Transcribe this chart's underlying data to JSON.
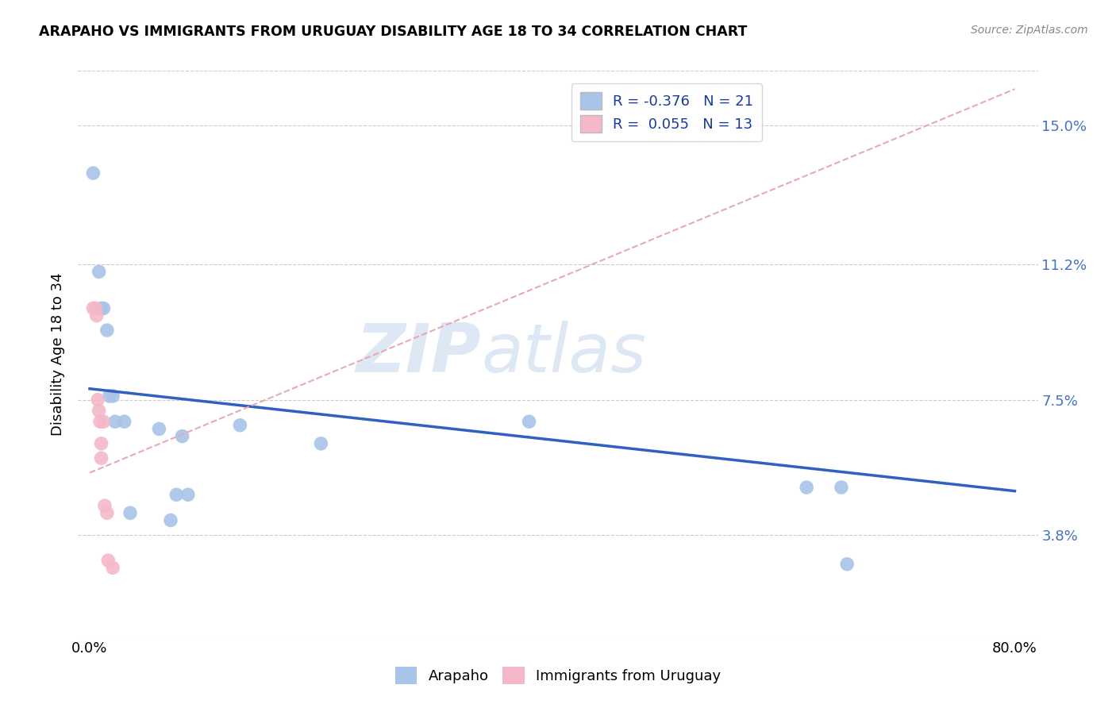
{
  "title": "ARAPAHO VS IMMIGRANTS FROM URUGUAY DISABILITY AGE 18 TO 34 CORRELATION CHART",
  "source": "Source: ZipAtlas.com",
  "ylabel": "Disability Age 18 to 34",
  "xlim": [
    -0.01,
    0.82
  ],
  "ylim": [
    0.01,
    0.165
  ],
  "plot_ylim": [
    0.01,
    0.165
  ],
  "yticks": [
    0.038,
    0.075,
    0.112,
    0.15
  ],
  "ytick_labels": [
    "3.8%",
    "7.5%",
    "11.2%",
    "15.0%"
  ],
  "xticks": [
    0.0,
    0.1,
    0.2,
    0.3,
    0.4,
    0.5,
    0.6,
    0.7,
    0.8
  ],
  "xtick_labels": [
    "0.0%",
    "",
    "",
    "",
    "",
    "",
    "",
    "",
    "80.0%"
  ],
  "legend_blue_r": "-0.376",
  "legend_blue_n": "21",
  "legend_pink_r": "0.055",
  "legend_pink_n": "13",
  "blue_color": "#a8c4e8",
  "pink_color": "#f4b8c8",
  "line_blue_color": "#3060c0",
  "line_pink_color": "#e8a8b8",
  "watermark_zip": "ZIP",
  "watermark_atlas": "atlas",
  "arapaho_x": [
    0.003,
    0.008,
    0.01,
    0.012,
    0.015,
    0.017,
    0.02,
    0.022,
    0.03,
    0.035,
    0.06,
    0.07,
    0.075,
    0.08,
    0.085,
    0.13,
    0.2,
    0.38,
    0.62,
    0.65,
    0.655
  ],
  "arapaho_y": [
    0.137,
    0.11,
    0.1,
    0.1,
    0.094,
    0.076,
    0.076,
    0.069,
    0.069,
    0.044,
    0.067,
    0.042,
    0.049,
    0.065,
    0.049,
    0.068,
    0.063,
    0.069,
    0.051,
    0.051,
    0.03
  ],
  "uruguay_x": [
    0.003,
    0.005,
    0.006,
    0.007,
    0.008,
    0.009,
    0.01,
    0.01,
    0.012,
    0.013,
    0.015,
    0.016,
    0.02
  ],
  "uruguay_y": [
    0.1,
    0.1,
    0.098,
    0.075,
    0.072,
    0.069,
    0.063,
    0.059,
    0.069,
    0.046,
    0.044,
    0.031,
    0.029
  ],
  "blue_line_x": [
    0.0,
    0.8
  ],
  "blue_line_y": [
    0.078,
    0.05
  ],
  "pink_line_x": [
    0.0,
    0.8
  ],
  "pink_line_y": [
    0.055,
    0.16
  ]
}
